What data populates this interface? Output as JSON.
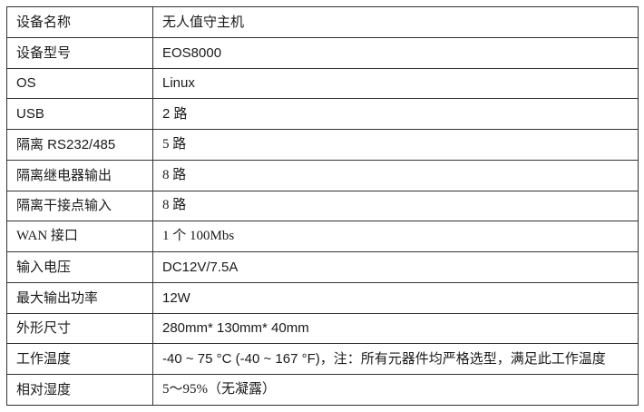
{
  "table": {
    "border_color": "#333333",
    "text_color": "#1a1a1a",
    "rows": [
      {
        "label": "设备名称",
        "value": "无人值守主机",
        "label_font": "sans",
        "value_font": "sans"
      },
      {
        "label": "设备型号",
        "value": "EOS8000",
        "label_font": "sans",
        "value_font": "sans"
      },
      {
        "label": "OS",
        "value": "Linux",
        "label_font": "sans",
        "value_font": "sans"
      },
      {
        "label": "USB",
        "value": "2 路",
        "label_font": "sans",
        "value_font": "sans"
      },
      {
        "label": "隔离 RS232/485",
        "value": "5 路",
        "label_font": "sans",
        "value_font": "serif"
      },
      {
        "label": "隔离继电器输出",
        "value": "8 路",
        "label_font": "sans",
        "value_font": "serif"
      },
      {
        "label": "隔离干接点输入",
        "value": "8 路",
        "label_font": "sans",
        "value_font": "serif"
      },
      {
        "label": "WAN 接口",
        "value": "1 个 100Mbs",
        "label_font": "serif",
        "value_font": "serif"
      },
      {
        "label": "输入电压",
        "value": "DC12V/7.5A",
        "label_font": "sans",
        "value_font": "sans"
      },
      {
        "label": "最大输出功率",
        "value": "12W",
        "label_font": "sans",
        "value_font": "sans"
      },
      {
        "label": "外形尺寸",
        "value": "280mm* 130mm* 40mm",
        "label_font": "sans",
        "value_font": "sans"
      },
      {
        "label": "工作温度",
        "value": "-40 ~ 75 °C (-40 ~ 167 °F)，注：所有元器件均严格选型，满足此工作温度",
        "label_font": "sans",
        "value_font": "sans"
      },
      {
        "label": "相对湿度",
        "value": "5～95%（无凝露）",
        "label_font": "sans",
        "value_font": "serif"
      }
    ]
  }
}
